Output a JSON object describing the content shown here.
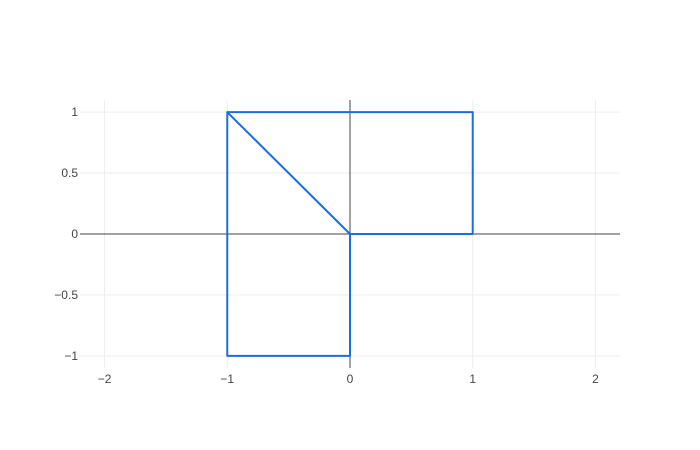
{
  "chart_data": {
    "type": "line",
    "title": "",
    "xlabel": "",
    "ylabel": "",
    "xlim": [
      -2.2,
      2.2
    ],
    "ylim": [
      -1.1,
      1.1
    ],
    "grid": true,
    "x_ticks": [
      -2,
      -1,
      0,
      1,
      2
    ],
    "x_tick_labels": [
      "−2",
      "−1",
      "0",
      "1",
      "2"
    ],
    "y_ticks": [
      -1,
      -0.5,
      0,
      0.5,
      1
    ],
    "y_tick_labels": [
      "−1",
      "−0.5",
      "0",
      "0.5",
      "1"
    ],
    "series": [
      {
        "x": [
          0,
          1,
          1,
          -1,
          -1,
          0,
          0,
          -1
        ],
        "y": [
          0,
          0,
          1,
          1,
          -1,
          -1,
          0,
          1
        ],
        "color": "#1a6fe0"
      }
    ],
    "grid_color": "#eeeeee",
    "zeroline_color": "#444444"
  }
}
